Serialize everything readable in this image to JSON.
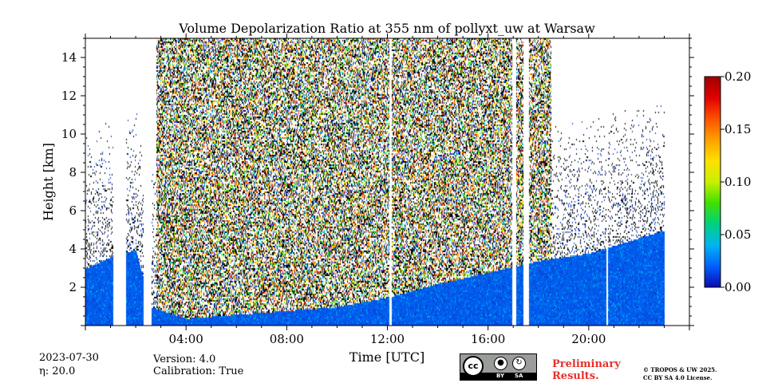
{
  "chart_data": {
    "type": "heatmap",
    "title": "Volume Depolarization Ratio at 355 nm of pollyxt_uw at Warsaw",
    "xlabel": "Time [UTC]",
    "ylabel": "Height [km]",
    "xlim_hours": [
      0,
      24
    ],
    "ylim": [
      0,
      15
    ],
    "x_ticks": [
      {
        "hour": 4,
        "label": "04:00"
      },
      {
        "hour": 8,
        "label": "08:00"
      },
      {
        "hour": 12,
        "label": "12:00"
      },
      {
        "hour": 16,
        "label": "16:00"
      },
      {
        "hour": 20,
        "label": "20:00"
      }
    ],
    "y_ticks": [
      {
        "value": 2,
        "label": "2"
      },
      {
        "value": 4,
        "label": "4"
      },
      {
        "value": 6,
        "label": "6"
      },
      {
        "value": 8,
        "label": "8"
      },
      {
        "value": 10,
        "label": "10"
      },
      {
        "value": 12,
        "label": "12"
      },
      {
        "value": 14,
        "label": "14"
      }
    ],
    "colorbar": {
      "range": [
        0,
        0.2
      ],
      "ticks": [
        {
          "value": 0.0,
          "label": "0.00"
        },
        {
          "value": 0.05,
          "label": "0.05"
        },
        {
          "value": 0.1,
          "label": "0.10"
        },
        {
          "value": 0.15,
          "label": "0.15"
        },
        {
          "value": 0.2,
          "label": "0.20"
        }
      ],
      "colormap": [
        "#0a0ab0",
        "#0060ff",
        "#00b4f0",
        "#00d080",
        "#40e000",
        "#c8f000",
        "#ffe000",
        "#ffa000",
        "#ff5000",
        "#e00000",
        "#a00000"
      ]
    },
    "boundary_layer_top_km": [
      {
        "hour": 0.0,
        "height": 3.0
      },
      {
        "hour": 1.0,
        "height": 3.6
      },
      {
        "hour": 2.0,
        "height": 4.0
      },
      {
        "hour": 2.6,
        "height": 1.0
      },
      {
        "hour": 4.0,
        "height": 0.4
      },
      {
        "hour": 6.0,
        "height": 0.6
      },
      {
        "hour": 8.0,
        "height": 0.8
      },
      {
        "hour": 10.0,
        "height": 1.0
      },
      {
        "hour": 12.0,
        "height": 1.5
      },
      {
        "hour": 14.0,
        "height": 2.2
      },
      {
        "hour": 16.0,
        "height": 2.8
      },
      {
        "hour": 18.0,
        "height": 3.4
      },
      {
        "hour": 20.0,
        "height": 3.8
      },
      {
        "hour": 22.0,
        "height": 4.6
      },
      {
        "hour": 23.0,
        "height": 5.0
      }
    ],
    "noise_region_hours": [
      2.8,
      18.5
    ],
    "data_gaps_hours": [
      [
        1.1,
        1.6
      ],
      [
        2.3,
        2.6
      ],
      [
        12.05,
        12.15
      ],
      [
        16.95,
        17.1
      ],
      [
        17.4,
        17.6
      ],
      [
        20.7,
        20.75
      ]
    ],
    "data_end_hour": 23.0
  },
  "footer": {
    "date": "2023-07-30",
    "eta": "η: 20.0",
    "version": "Version: 4.0",
    "calibration": "Calibration: True",
    "license_badge": {
      "cc": "cc",
      "by": "BY",
      "sa": "SA"
    },
    "preliminary_line1": "Preliminary",
    "preliminary_line2": "Results.",
    "copyright_line1": "© TROPOS & UW 2025.",
    "copyright_line2": "CC BY SA 4.0 License."
  }
}
